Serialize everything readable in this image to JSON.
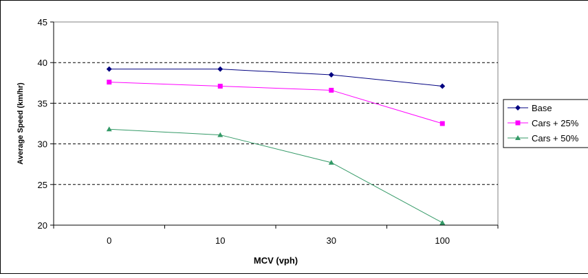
{
  "chart_data": {
    "type": "line",
    "title": "",
    "xlabel": "MCV (vph)",
    "ylabel": "Average Speed (km/hr)",
    "categories": [
      "0",
      "10",
      "30",
      "100"
    ],
    "ylim": [
      20,
      45
    ],
    "yticks": [
      20,
      25,
      30,
      35,
      40,
      45
    ],
    "grid": "dashed horizontal",
    "legend": "right",
    "series": [
      {
        "name": "Base",
        "values": [
          39.2,
          39.2,
          38.5,
          37.1
        ],
        "color": "#000080",
        "marker": "diamond"
      },
      {
        "name": "Cars + 25%",
        "values": [
          37.6,
          37.1,
          36.6,
          32.5
        ],
        "color": "#ff00ff",
        "marker": "square"
      },
      {
        "name": "Cars + 50%",
        "values": [
          31.8,
          31.1,
          27.7,
          20.3
        ],
        "color": "#339966",
        "marker": "triangle"
      }
    ]
  }
}
